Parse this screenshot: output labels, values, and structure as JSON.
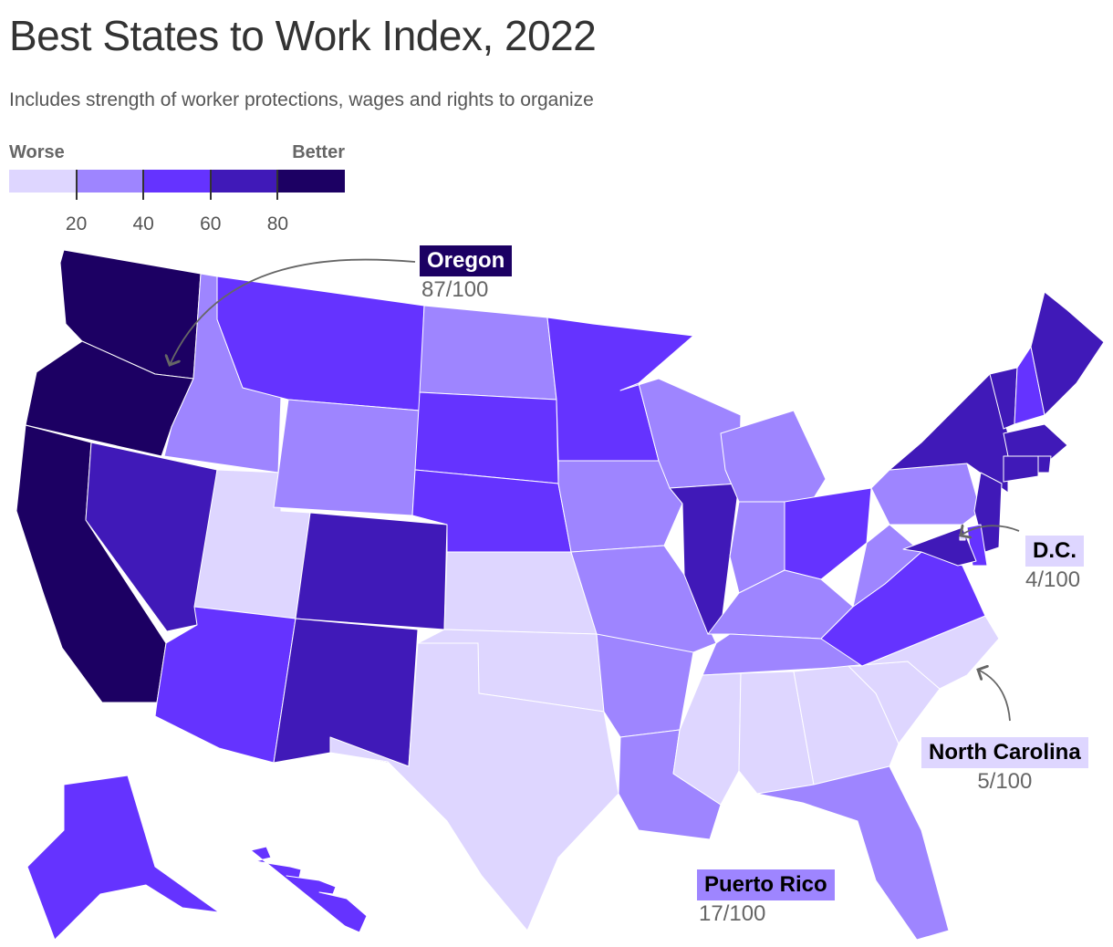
{
  "title": "Best States to Work Index, 2022",
  "subtitle": "Includes strength of worker protections, wages and rights to organize",
  "legend": {
    "low_label": "Worse",
    "high_label": "Better",
    "bins": [
      "#ded6ff",
      "#9e85ff",
      "#6533ff",
      "#4019b8",
      "#1c0063"
    ],
    "ticks": [
      "20",
      "40",
      "60",
      "80"
    ]
  },
  "callouts": {
    "oregon": {
      "name": "Oregon",
      "score": "87/100",
      "box_color": "#1c0063",
      "text_color": "#ffffff"
    },
    "dc": {
      "name": "D.C.",
      "score": "4/100",
      "box_color": "#ded6ff",
      "text_color": "#000000"
    },
    "north_carolina": {
      "name": "North Carolina",
      "score": "5/100",
      "box_color": "#ded6ff",
      "text_color": "#000000"
    },
    "puerto_rico": {
      "name": "Puerto Rico",
      "score": "17/100",
      "box_color": "#9e85ff",
      "text_color": "#000000"
    }
  },
  "chart_data": {
    "type": "choropleth",
    "title": "Best States to Work Index, 2022",
    "scale": {
      "min": 0,
      "max": 100,
      "breaks": [
        20,
        40,
        60,
        80
      ]
    },
    "labeled_values": [
      {
        "state": "Oregon",
        "value": 87
      },
      {
        "state": "D.C.",
        "value": 4
      },
      {
        "state": "North Carolina",
        "value": 5
      },
      {
        "state": "Puerto Rico",
        "value": 17
      }
    ],
    "states": [
      {
        "id": "WA",
        "bin": 4
      },
      {
        "id": "OR",
        "bin": 4
      },
      {
        "id": "CA",
        "bin": 4
      },
      {
        "id": "ID",
        "bin": 1
      },
      {
        "id": "NV",
        "bin": 3
      },
      {
        "id": "UT",
        "bin": 0
      },
      {
        "id": "AZ",
        "bin": 2
      },
      {
        "id": "MT",
        "bin": 2
      },
      {
        "id": "WY",
        "bin": 1
      },
      {
        "id": "CO",
        "bin": 3
      },
      {
        "id": "NM",
        "bin": 3
      },
      {
        "id": "ND",
        "bin": 1
      },
      {
        "id": "SD",
        "bin": 2
      },
      {
        "id": "NE",
        "bin": 2
      },
      {
        "id": "KS",
        "bin": 0
      },
      {
        "id": "OK",
        "bin": 0
      },
      {
        "id": "TX",
        "bin": 0
      },
      {
        "id": "MN",
        "bin": 2
      },
      {
        "id": "IA",
        "bin": 1
      },
      {
        "id": "MO",
        "bin": 1
      },
      {
        "id": "AR",
        "bin": 1
      },
      {
        "id": "LA",
        "bin": 1
      },
      {
        "id": "WI",
        "bin": 1
      },
      {
        "id": "IL",
        "bin": 3
      },
      {
        "id": "MI",
        "bin": 1
      },
      {
        "id": "IN",
        "bin": 1
      },
      {
        "id": "OH",
        "bin": 2
      },
      {
        "id": "KY",
        "bin": 1
      },
      {
        "id": "TN",
        "bin": 1
      },
      {
        "id": "MS",
        "bin": 0
      },
      {
        "id": "AL",
        "bin": 0
      },
      {
        "id": "GA",
        "bin": 0
      },
      {
        "id": "FL",
        "bin": 1
      },
      {
        "id": "SC",
        "bin": 0
      },
      {
        "id": "NC",
        "bin": 0
      },
      {
        "id": "VA",
        "bin": 2
      },
      {
        "id": "WV",
        "bin": 1
      },
      {
        "id": "PA",
        "bin": 1
      },
      {
        "id": "NY",
        "bin": 3
      },
      {
        "id": "VT",
        "bin": 3
      },
      {
        "id": "NH",
        "bin": 2
      },
      {
        "id": "ME",
        "bin": 3
      },
      {
        "id": "MA",
        "bin": 3
      },
      {
        "id": "RI",
        "bin": 3
      },
      {
        "id": "CT",
        "bin": 3
      },
      {
        "id": "NJ",
        "bin": 3
      },
      {
        "id": "DE",
        "bin": 2
      },
      {
        "id": "MD",
        "bin": 3
      },
      {
        "id": "DC",
        "bin": 0
      },
      {
        "id": "AK",
        "bin": 2
      },
      {
        "id": "HI",
        "bin": 2
      }
    ]
  }
}
